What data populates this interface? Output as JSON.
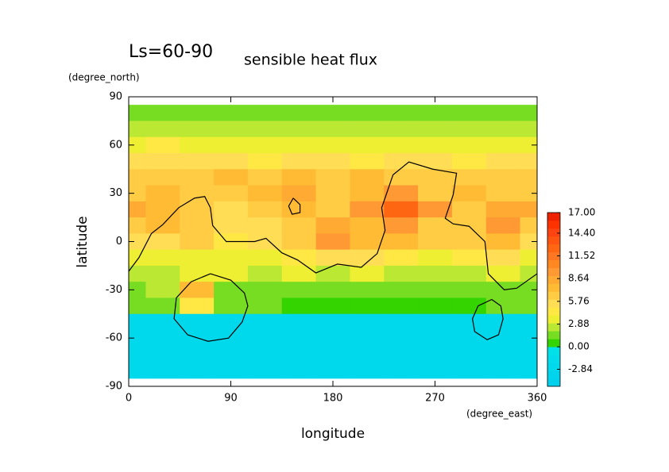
{
  "chart_data": {
    "type": "heatmap",
    "title": "Ls=60-90",
    "subtitle": "sensible heat flux",
    "x_label": "longitude",
    "y_label": "latitude",
    "x_unit": "(degree_east)",
    "y_unit": "(degree_north)",
    "x": [
      0,
      30,
      60,
      90,
      120,
      150,
      180,
      210,
      240,
      270,
      300,
      330,
      360
    ],
    "y": [
      80,
      70,
      60,
      50,
      40,
      30,
      20,
      10,
      0,
      -10,
      -20,
      -30,
      -40,
      -50,
      -60,
      -70,
      -80
    ],
    "z": [
      [
        1,
        1,
        1,
        1,
        1,
        1,
        1,
        1,
        1,
        1,
        1,
        1,
        1
      ],
      [
        2,
        2,
        2,
        2,
        2,
        2,
        2,
        2,
        2,
        2,
        2,
        2,
        2
      ],
      [
        3.5,
        4,
        3.5,
        3,
        3.5,
        3.5,
        3,
        3.5,
        3,
        3.5,
        3,
        3,
        3.5
      ],
      [
        5,
        5,
        5,
        5,
        4.5,
        5,
        5,
        4.5,
        5,
        5,
        4.5,
        5,
        5
      ],
      [
        6,
        6,
        6,
        7,
        6,
        7,
        6,
        7,
        6,
        6,
        6,
        6,
        6
      ],
      [
        6,
        7,
        6,
        6,
        7,
        8,
        6,
        7,
        9,
        6,
        7,
        6,
        6
      ],
      [
        8,
        7,
        6,
        5,
        6,
        7,
        6,
        9,
        12,
        9,
        6,
        8,
        8
      ],
      [
        6,
        7,
        6,
        5,
        5,
        6,
        8,
        7,
        10,
        6,
        6,
        9,
        6
      ],
      [
        5,
        5,
        6,
        4,
        5,
        6,
        9,
        7,
        7,
        6,
        6,
        7,
        5
      ],
      [
        3,
        3,
        3.5,
        3,
        3,
        4,
        5,
        5,
        4,
        3.5,
        4,
        5,
        3
      ],
      [
        2,
        2,
        3,
        3,
        2,
        3,
        2.5,
        3,
        2.5,
        2.5,
        2.5,
        3,
        2
      ],
      [
        1.5,
        2,
        7,
        1.5,
        1.5,
        1.5,
        1.5,
        1.5,
        1.5,
        1.5,
        1.5,
        1.5,
        1.5
      ],
      [
        1,
        1,
        4,
        1,
        1,
        0.8,
        0.8,
        0.8,
        0.8,
        0.8,
        0.8,
        1,
        1
      ],
      [
        -3,
        -3,
        -3,
        -3,
        -3,
        -3,
        -3,
        -3,
        -3,
        -3,
        -3,
        -3,
        -3
      ],
      [
        -3,
        -3,
        -3,
        -3,
        -3,
        -3,
        -3,
        -3,
        -3,
        -3,
        -3,
        -3,
        -3
      ],
      [
        -3,
        -3,
        -3,
        -3,
        -3,
        -3,
        -3,
        -3,
        -3,
        -3,
        -3,
        -3,
        -3
      ],
      [
        -3,
        -3,
        -3,
        -3,
        -3,
        -3,
        -3,
        -3,
        -3,
        -3,
        -3,
        -3,
        -3
      ]
    ],
    "clim": [
      -5,
      17
    ],
    "colors": [
      "#00d0ec",
      "#00d4ec",
      "#00d8ec",
      "#00dcec",
      "#00e0e8",
      "#33d400",
      "#77dd22",
      "#bbe833",
      "#eeee33",
      "#ffe844",
      "#ffdd55",
      "#ffcc44",
      "#ffbb33",
      "#ffaa33",
      "#ff9933",
      "#ff8822",
      "#ff7722",
      "#ff6611",
      "#ff5511",
      "#ff4411",
      "#ff3300",
      "#ee2200"
    ],
    "colorbar_ticks": [
      {
        "value": 17,
        "label": "17.00"
      },
      {
        "value": 14.4,
        "label": "14.40"
      },
      {
        "value": 11.52,
        "label": "11.52"
      },
      {
        "value": 8.64,
        "label": "8.64"
      },
      {
        "value": 5.76,
        "label": "5.76"
      },
      {
        "value": 2.88,
        "label": "2.88"
      },
      {
        "value": 0,
        "label": "0.00"
      },
      {
        "value": -2.84,
        "label": "-2.84"
      }
    ],
    "contours": [
      {
        "x": [
          0,
          9,
          20,
          30,
          44,
          58,
          67,
          72,
          74,
          86,
          111,
          121,
          135,
          149,
          165,
          184,
          205,
          219,
          226,
          223,
          233,
          247,
          268,
          289,
          286,
          279,
          286,
          300,
          314,
          317,
          331,
          342,
          360
        ],
        "y": [
          -18.5,
          -10,
          5,
          10.5,
          21,
          27,
          28,
          21,
          10,
          0,
          0,
          2,
          -7,
          -11.5,
          -19.5,
          -14,
          -16,
          -7.5,
          7,
          21,
          41.5,
          49.5,
          45,
          42.5,
          29,
          14.5,
          11,
          9.5,
          0,
          -20,
          -30,
          -29,
          -20
        ]
      },
      {
        "x": [
          145,
          151,
          151,
          144,
          141,
          145
        ],
        "y": [
          27,
          23,
          18,
          17,
          22,
          27
        ]
      },
      {
        "x": [
          72,
          90,
          102,
          105,
          100,
          88,
          70,
          52,
          40,
          42,
          55,
          72
        ],
        "y": [
          -20,
          -24,
          -32,
          -40,
          -50,
          -60,
          -62,
          -58,
          -48,
          -35,
          -25,
          -20
        ]
      },
      {
        "x": [
          320,
          328,
          330,
          326,
          316,
          305,
          303,
          308,
          320
        ],
        "y": [
          -36,
          -40,
          -48,
          -58,
          -61,
          -56,
          -48,
          -40,
          -36
        ]
      }
    ],
    "xlim": [
      0,
      360
    ],
    "xticks": [
      0,
      90,
      180,
      270,
      360
    ],
    "ylim": [
      -90,
      90
    ],
    "yticks": [
      -90,
      -60,
      -30,
      0,
      30,
      60,
      90
    ]
  }
}
